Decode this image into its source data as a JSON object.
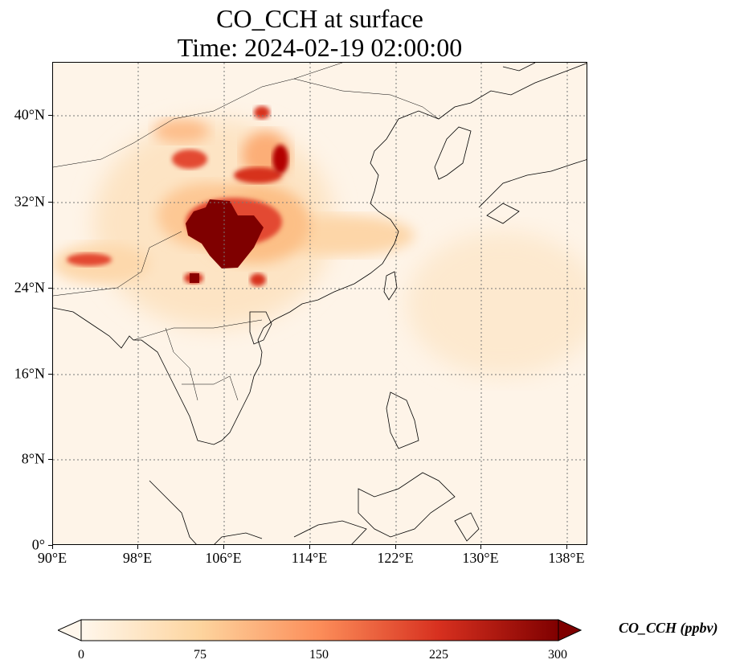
{
  "title": {
    "line1": "CO_CCH at surface",
    "line2": "Time: 2024-02-19 02:00:00"
  },
  "axes": {
    "y_ticks": [
      "0°",
      "8°N",
      "16°N",
      "24°N",
      "32°N",
      "40°N"
    ],
    "x_ticks": [
      "90°E",
      "98°E",
      "106°E",
      "114°E",
      "122°E",
      "130°E",
      "138°E"
    ]
  },
  "map": {
    "variable": "CO_CCH",
    "level": "surface",
    "lon_range": [
      90,
      140
    ],
    "lat_range": [
      0,
      45
    ],
    "gridlines": "dotted",
    "colormap": "OrRd"
  },
  "colorbar": {
    "label": "CO_CCH (ppbv)",
    "ticks": [
      "0",
      "75",
      "150",
      "225",
      "300"
    ],
    "range": [
      0,
      300
    ],
    "colors": [
      "#fff7ec",
      "#fdd49e",
      "#fc8d59",
      "#d7301f",
      "#7f0000"
    ],
    "extend": "both"
  }
}
